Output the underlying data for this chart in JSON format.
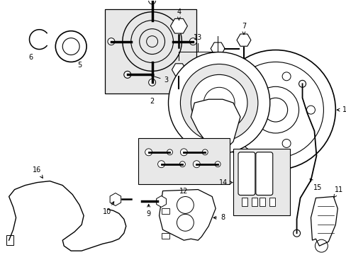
{
  "bg_color": "#ffffff",
  "fig_width": 4.89,
  "fig_height": 3.6,
  "dpi": 100,
  "lc": "#000000",
  "box_fill": "#e8e8e8"
}
